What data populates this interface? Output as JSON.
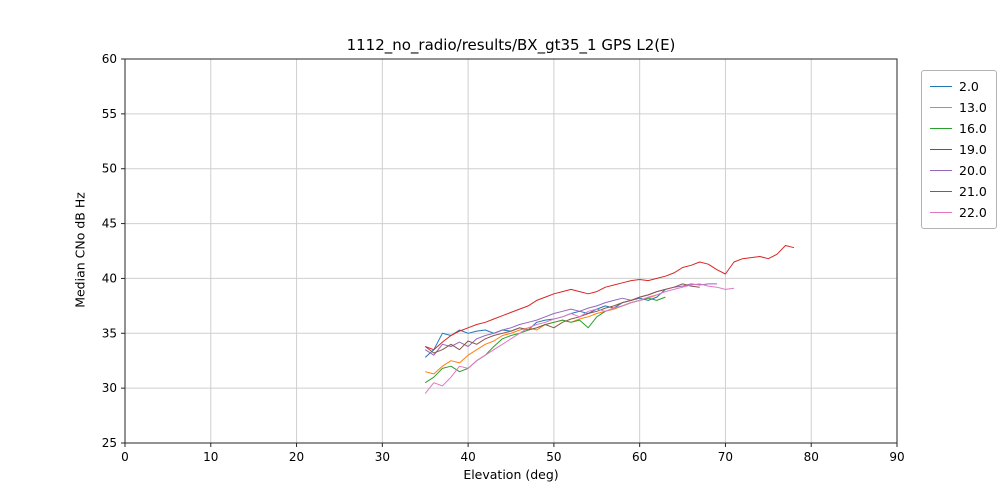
{
  "chart_data": {
    "type": "line",
    "title": "1112_no_radio/results/BX_gt35_1 GPS L2(E)",
    "xlabel": "Elevation (deg)",
    "ylabel": "Median CNo dB Hz",
    "xlim": [
      0,
      90
    ],
    "ylim": [
      25,
      60
    ],
    "xticks": [
      0,
      10,
      20,
      30,
      40,
      50,
      60,
      70,
      80,
      90
    ],
    "yticks": [
      25,
      30,
      35,
      40,
      45,
      50,
      55,
      60
    ],
    "grid": true,
    "legend_position": "outside-right",
    "series": [
      {
        "name": "2.0",
        "color": "#1f77b4",
        "x": [
          35,
          36,
          37,
          38,
          39,
          40,
          41,
          42,
          43,
          44,
          45,
          46,
          47,
          48,
          49,
          50,
          51,
          52,
          53,
          54,
          55,
          56,
          57,
          58,
          59,
          60,
          61,
          62,
          63
        ],
        "y": [
          32.8,
          33.5,
          35.0,
          34.8,
          35.3,
          35.0,
          35.2,
          35.3,
          35.0,
          35.3,
          35.2,
          35.5,
          35.3,
          36.0,
          36.2,
          36.3,
          36.5,
          36.8,
          37.0,
          36.8,
          37.2,
          37.5,
          37.3,
          37.8,
          38.0,
          38.2,
          38.0,
          38.3,
          39.0
        ]
      },
      {
        "name": "13.0",
        "color": "#ff7f0e",
        "x": [
          35,
          36,
          37,
          38,
          39,
          40,
          41,
          42,
          43,
          44,
          45,
          46,
          47,
          48,
          49,
          50,
          51,
          52,
          53,
          54,
          55,
          56,
          57,
          58,
          59,
          60,
          61,
          62
        ],
        "y": [
          31.5,
          31.3,
          32.0,
          32.5,
          32.3,
          33.0,
          33.5,
          34.0,
          34.3,
          34.8,
          35.0,
          35.3,
          35.5,
          35.3,
          35.8,
          36.0,
          36.2,
          36.0,
          36.3,
          36.5,
          36.8,
          37.0,
          37.2,
          37.5,
          37.8,
          38.0,
          38.2,
          38.5
        ]
      },
      {
        "name": "16.0",
        "color": "#2ca02c",
        "x": [
          35,
          36,
          37,
          38,
          39,
          40,
          41,
          42,
          43,
          44,
          45,
          46,
          47,
          48,
          49,
          50,
          51,
          52,
          53,
          54,
          55,
          56,
          57,
          58,
          59,
          60,
          61,
          62,
          63
        ],
        "y": [
          30.5,
          31.0,
          31.8,
          32.0,
          31.5,
          31.8,
          32.5,
          33.0,
          33.8,
          34.5,
          34.8,
          35.0,
          35.3,
          35.5,
          35.8,
          36.0,
          36.2,
          36.0,
          36.2,
          35.5,
          36.5,
          37.0,
          37.3,
          37.5,
          37.8,
          38.0,
          38.2,
          38.0,
          38.3
        ]
      },
      {
        "name": "19.0",
        "color": "#d62728",
        "x": [
          35,
          36,
          37,
          38,
          39,
          40,
          41,
          42,
          43,
          44,
          45,
          46,
          47,
          48,
          49,
          50,
          51,
          52,
          53,
          54,
          55,
          56,
          57,
          58,
          59,
          60,
          61,
          62,
          63,
          64,
          65,
          66,
          67,
          68,
          69,
          70,
          71,
          72,
          73,
          74,
          75,
          76,
          77,
          78
        ],
        "y": [
          33.8,
          33.5,
          34.2,
          34.8,
          35.2,
          35.5,
          35.8,
          36.0,
          36.3,
          36.6,
          36.9,
          37.2,
          37.5,
          38.0,
          38.3,
          38.6,
          38.8,
          39.0,
          38.8,
          38.6,
          38.8,
          39.2,
          39.4,
          39.6,
          39.8,
          39.9,
          39.8,
          40.0,
          40.2,
          40.5,
          41.0,
          41.2,
          41.5,
          41.3,
          40.8,
          40.4,
          41.5,
          41.8,
          41.9,
          42.0,
          41.8,
          42.2,
          43.0,
          42.8
        ]
      },
      {
        "name": "20.0",
        "color": "#9467bd",
        "x": [
          35,
          36,
          37,
          38,
          39,
          40,
          41,
          42,
          43,
          44,
          45,
          46,
          47,
          48,
          49,
          50,
          51,
          52,
          53,
          54,
          55,
          56,
          57,
          58,
          59,
          60,
          61,
          62,
          63,
          64,
          65,
          66,
          67,
          68,
          69
        ],
        "y": [
          33.5,
          33.0,
          34.0,
          33.8,
          34.2,
          33.8,
          34.5,
          34.8,
          35.0,
          35.3,
          35.5,
          35.8,
          36.0,
          36.2,
          36.5,
          36.8,
          37.0,
          37.2,
          37.0,
          37.3,
          37.5,
          37.8,
          38.0,
          38.2,
          38.0,
          38.3,
          38.5,
          38.8,
          39.0,
          39.2,
          39.3,
          39.5,
          39.4,
          39.5,
          39.5
        ]
      },
      {
        "name": "21.0",
        "color": "#8c564b",
        "x": [
          35,
          36,
          37,
          38,
          39,
          40,
          41,
          42,
          43,
          44,
          45,
          46,
          47,
          48,
          49,
          50,
          51,
          52,
          53,
          54,
          55,
          56,
          57,
          58,
          59,
          60,
          61,
          62,
          63,
          64,
          65,
          66,
          67
        ],
        "y": [
          33.8,
          33.2,
          33.5,
          34.0,
          33.5,
          34.3,
          34.0,
          34.5,
          34.8,
          35.0,
          35.2,
          35.5,
          35.3,
          35.5,
          35.8,
          35.5,
          36.0,
          36.3,
          36.5,
          36.8,
          37.0,
          37.3,
          37.5,
          37.8,
          38.0,
          38.3,
          38.5,
          38.8,
          39.0,
          39.2,
          39.5,
          39.3,
          39.2
        ]
      },
      {
        "name": "22.0",
        "color": "#e377c2",
        "x": [
          35,
          36,
          37,
          38,
          39,
          40,
          41,
          42,
          43,
          44,
          45,
          46,
          47,
          48,
          49,
          50,
          51,
          52,
          53,
          54,
          55,
          56,
          57,
          58,
          59,
          60,
          61,
          62,
          63,
          64,
          65,
          66,
          67,
          68,
          69,
          70,
          71
        ],
        "y": [
          29.5,
          30.5,
          30.2,
          31.0,
          32.0,
          31.8,
          32.5,
          33.0,
          33.5,
          34.0,
          34.5,
          35.0,
          35.5,
          35.8,
          36.0,
          36.3,
          36.5,
          36.8,
          36.5,
          37.0,
          37.2,
          37.0,
          37.3,
          37.5,
          37.8,
          38.0,
          38.3,
          38.5,
          38.8,
          39.0,
          39.2,
          39.4,
          39.5,
          39.3,
          39.2,
          39.0,
          39.1
        ]
      }
    ]
  }
}
